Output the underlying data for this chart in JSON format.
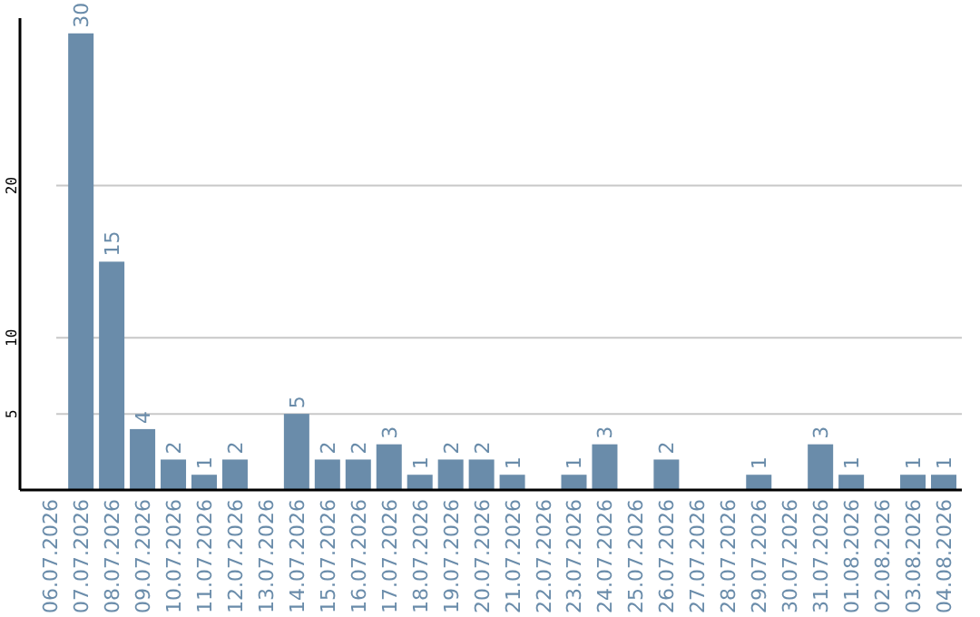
{
  "chart_data": {
    "type": "bar",
    "categories": [
      "06.07.2026",
      "07.07.2026",
      "08.07.2026",
      "09.07.2026",
      "10.07.2026",
      "11.07.2026",
      "12.07.2026",
      "13.07.2026",
      "14.07.2026",
      "15.07.2026",
      "16.07.2026",
      "17.07.2026",
      "18.07.2026",
      "19.07.2026",
      "20.07.2026",
      "21.07.2026",
      "22.07.2026",
      "23.07.2026",
      "24.07.2026",
      "25.07.2026",
      "26.07.2026",
      "27.07.2026",
      "28.07.2026",
      "29.07.2026",
      "30.07.2026",
      "31.07.2026",
      "01.08.2026",
      "02.08.2026",
      "03.08.2026",
      "04.08.2026"
    ],
    "values": [
      null,
      30,
      15,
      4,
      2,
      1,
      2,
      null,
      5,
      2,
      2,
      3,
      1,
      2,
      2,
      1,
      null,
      1,
      3,
      null,
      2,
      null,
      null,
      1,
      null,
      3,
      1,
      null,
      1,
      1
    ],
    "color": "#6a8caa",
    "ylim": [
      0,
      31
    ],
    "yticks": [
      5,
      10,
      20
    ],
    "grid": "y",
    "data_labels": true
  }
}
